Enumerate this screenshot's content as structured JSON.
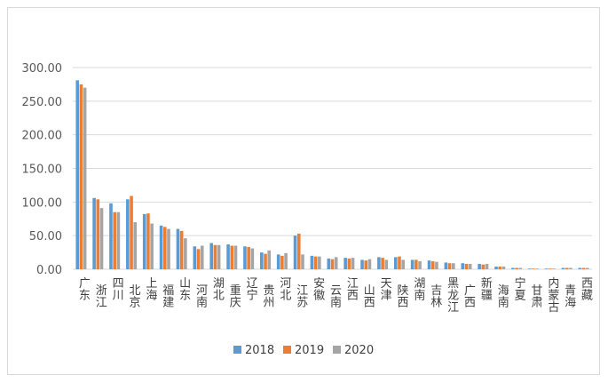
{
  "chart_data": {
    "type": "bar",
    "title": "",
    "xlabel": "",
    "ylabel": "",
    "ylim": [
      0,
      300
    ],
    "yticks": [
      "0.00",
      "50.00",
      "100.00",
      "150.00",
      "200.00",
      "250.00",
      "300.00"
    ],
    "grid": true,
    "legend_position": "bottom",
    "categories": [
      "广东",
      "浙江",
      "四川",
      "北京",
      "上海",
      "福建",
      "山东",
      "河南",
      "湖北",
      "重庆",
      "辽宁",
      "贵州",
      "河北",
      "江苏",
      "安徽",
      "云南",
      "江西",
      "山西",
      "天津",
      "陕西",
      "湖南",
      "吉林",
      "黑龙江",
      "广西",
      "新疆",
      "海南",
      "宁夏",
      "甘肃",
      "内蒙古",
      "青海",
      "西藏"
    ],
    "series": [
      {
        "name": "2018",
        "color": "#5b9bd5",
        "values": [
          281,
          106,
          98,
          104,
          82,
          65,
          60,
          34,
          39,
          37,
          34,
          25,
          22,
          50,
          20,
          16,
          17,
          14,
          18,
          18,
          14,
          13,
          10,
          9,
          8,
          4,
          2,
          1,
          1,
          2,
          2
        ]
      },
      {
        "name": "2019",
        "color": "#ed7d31",
        "values": [
          275,
          104,
          85,
          109,
          83,
          63,
          57,
          30,
          36,
          35,
          33,
          23,
          20,
          53,
          19,
          15,
          16,
          13,
          17,
          19,
          14,
          12,
          9,
          8,
          7,
          4,
          2,
          1,
          1,
          2,
          2
        ]
      },
      {
        "name": "2020",
        "color": "#a5a5a5",
        "values": [
          270,
          91,
          85,
          70,
          68,
          60,
          46,
          35,
          36,
          35,
          31,
          28,
          24,
          22,
          19,
          18,
          17,
          15,
          14,
          14,
          12,
          11,
          9,
          8,
          8,
          4,
          2,
          1,
          1,
          2,
          2
        ]
      }
    ]
  }
}
